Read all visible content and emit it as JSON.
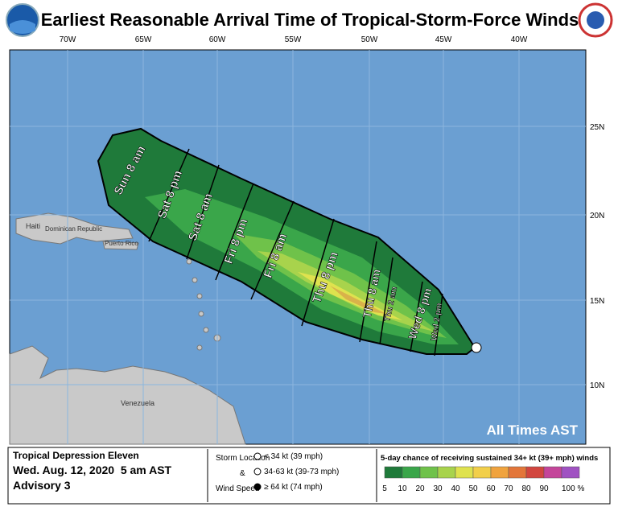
{
  "header": {
    "title": "Earliest Reasonable Arrival Time of Tropical-Storm-Force Winds"
  },
  "map": {
    "longitudes": [
      "70W",
      "65W",
      "60W",
      "55W",
      "50W",
      "45W",
      "40W"
    ],
    "latitudes": [
      "25N",
      "20N",
      "15N",
      "10N"
    ],
    "places": [
      "Haiti",
      "Dominican Republic",
      "Puerto Rico",
      "Venezuela"
    ],
    "arrival_times": [
      "Sun 8 am",
      "Sat 8 pm",
      "Sat 8 am",
      "Fri 8 pm",
      "Fri 8 am",
      "Thu 8 pm",
      "Thu 8 am",
      "Thu 2 am",
      "Wed 8 pm",
      "Wed 2 pm"
    ],
    "note": "All Times AST"
  },
  "footer": {
    "storm": "Tropical Depression Eleven",
    "date": "Wed. Aug. 12, 2020  5 am AST",
    "advisory": "Advisory 3",
    "legend_title": [
      "Storm Location",
      "&",
      "Wind Speed"
    ],
    "legend_items": [
      "< 34 kt (39 mph)",
      "34-63 kt (39-73 mph)",
      "≥ 64 kt (74 mph)"
    ],
    "scale_title": "5-day chance of receiving sustained 34+ kt (39+ mph) winds",
    "scale_labels": [
      "5",
      "10",
      "20",
      "30",
      "40",
      "50",
      "60",
      "70",
      "80",
      "90",
      "100 %"
    ],
    "scale_colors": [
      "#1f7a3a",
      "#3aa64a",
      "#6fc24a",
      "#a8d34c",
      "#dfe24e",
      "#f2cf4a",
      "#f0a33e",
      "#e3763a",
      "#d2463f",
      "#c4459a",
      "#a052c2"
    ]
  }
}
